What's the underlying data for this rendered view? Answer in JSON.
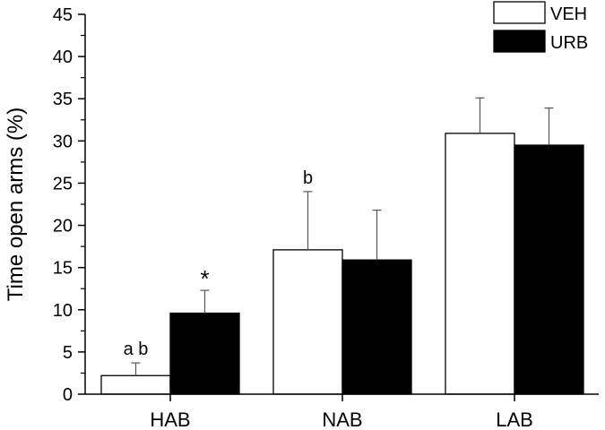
{
  "chart_data": {
    "type": "bar",
    "categories": [
      "HAB",
      "NAB",
      "LAB"
    ],
    "ylabel": "Time open arms (%)",
    "xlabel": "",
    "ylim": [
      0,
      45
    ],
    "yticks": [
      0,
      5,
      10,
      15,
      20,
      25,
      30,
      35,
      40,
      45
    ],
    "grid": false,
    "legend": "top-right",
    "series": [
      {
        "name": "VEH",
        "color": "#ffffff",
        "values": [
          2.2,
          17.1,
          30.9
        ],
        "errors": [
          1.5,
          6.9,
          4.2
        ]
      },
      {
        "name": "URB",
        "color": "#000000",
        "values": [
          9.6,
          15.9,
          29.5
        ],
        "errors": [
          2.7,
          5.9,
          4.4
        ]
      }
    ],
    "annotations": [
      {
        "text": "a b",
        "category": 0,
        "series": 0
      },
      {
        "text": "*",
        "category": 0,
        "series": 1
      },
      {
        "text": "b",
        "category": 1,
        "series": 0
      }
    ]
  }
}
